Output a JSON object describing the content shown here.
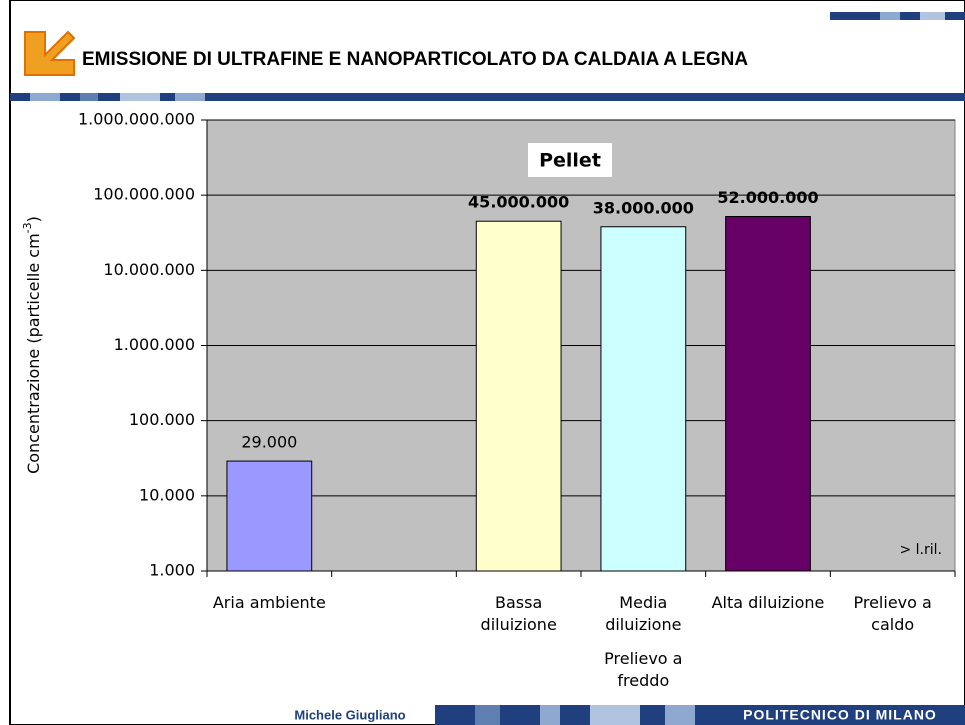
{
  "header": {
    "title": "EMISSIONE DI ULTRAFINE E NANOPARTICOLATO DA CALDAIA A LEGNA"
  },
  "footer": {
    "author": "Michele Giugliano",
    "institution": "POLITECNICO DI MILANO"
  },
  "chart_data": {
    "type": "bar",
    "annotation": "Pellet",
    "note": "> l.ril.",
    "group_label": "Prelievo a freddo",
    "y_label": "Concentrazione (particelle cm",
    "y_label_sup": "-3",
    "y_label_end": ")",
    "categories": [
      "Aria ambiente",
      null,
      "Bassa diluizione",
      "Media diluizione",
      "Alta diluizione",
      "Prelievo a caldo"
    ],
    "values": [
      29000,
      null,
      45000000,
      38000000,
      52000000,
      null
    ],
    "value_labels": [
      "29.000",
      null,
      "45.000.000",
      "38.000.000",
      "52.000.000",
      null
    ],
    "colors": [
      "#9999ff",
      null,
      "#ffffcc",
      "#ccffff",
      "#660066",
      null
    ],
    "log_scale": true,
    "grid": true,
    "ylim": [
      1000,
      1000000000
    ],
    "yticks": [
      {
        "value": 1000,
        "label": "1.000"
      },
      {
        "value": 10000,
        "label": "10.000"
      },
      {
        "value": 100000,
        "label": "100.000"
      },
      {
        "value": 1000000,
        "label": "1.000.000"
      },
      {
        "value": 10000000,
        "label": "10.000.000"
      },
      {
        "value": 100000000,
        "label": "100.000.000"
      },
      {
        "value": 1000000000,
        "label": "1.000.000.000"
      }
    ]
  }
}
